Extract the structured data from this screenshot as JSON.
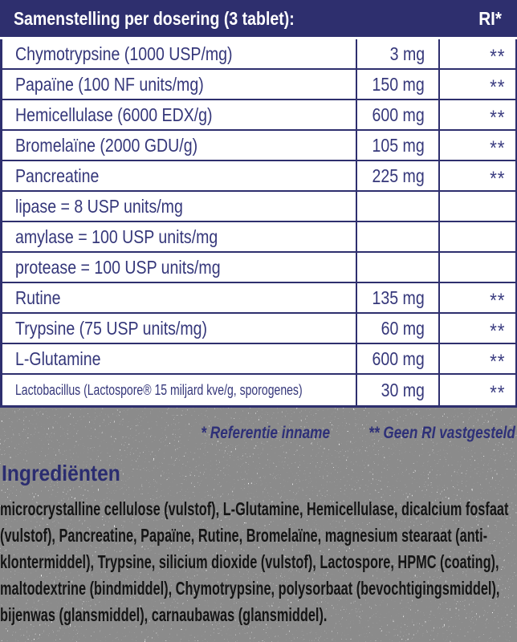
{
  "colors": {
    "navy": "#2e2f6e",
    "row_text": "#35377a",
    "header_text": "#ffffff",
    "paragraph_text": "#141414",
    "background": "#ffffff"
  },
  "table": {
    "header": {
      "title": "Samenstelling per dosering (3 tablet):",
      "ri_label": "RI*"
    },
    "rows": [
      {
        "name": "Chymotrypsine (1000 USP/mg)",
        "amount": "3 mg",
        "ri": "**"
      },
      {
        "name": "Papaïne (100 NF units/mg)",
        "amount": "150 mg",
        "ri": "**"
      },
      {
        "name": "Hemicellulase (6000 EDX/g)",
        "amount": "600 mg",
        "ri": "**"
      },
      {
        "name": "Bromelaïne (2000 GDU/g)",
        "amount": "105 mg",
        "ri": "**"
      },
      {
        "name": "Pancreatine",
        "amount": "225 mg",
        "ri": "**"
      },
      {
        "name": "lipase = 8 USP units/mg",
        "amount": "",
        "ri": ""
      },
      {
        "name": "amylase = 100 USP units/mg",
        "amount": "",
        "ri": ""
      },
      {
        "name": "protease = 100 USP units/mg",
        "amount": "",
        "ri": ""
      },
      {
        "name": "Rutine",
        "amount": "135 mg",
        "ri": "**"
      },
      {
        "name": "Trypsine (75 USP units/mg)",
        "amount": "60 mg",
        "ri": "**"
      },
      {
        "name": "L-Glutamine",
        "amount": "600 mg",
        "ri": "**"
      },
      {
        "name": "Lactobacillus (Lactospore® 15 miljard kve/g, sporogenes)",
        "amount": "30 mg",
        "ri": "**",
        "small": true
      }
    ]
  },
  "footnotes": {
    "reference": "* Referentie inname",
    "no_ri": "** Geen RI vastgesteld"
  },
  "ingredients": {
    "title": "Ingrediënten",
    "text": "microcrystalline cellulose (vulstof), L-Glutamine, Hemicellulase, dicalcium fosfaat (vulstof), Pancreatine, Papaïne, Rutine, Bromelaïne, magnesium stearaat (anti-klontermiddel), Trypsine, silicium dioxide (vulstof), Lactospore, HPMC (coating), maltodextrine (bindmiddel), Chymotrypsine, polysorbaat (bevochtigingsmiddel), bijenwas (glansmiddel), carnaubawas (glansmiddel)."
  }
}
